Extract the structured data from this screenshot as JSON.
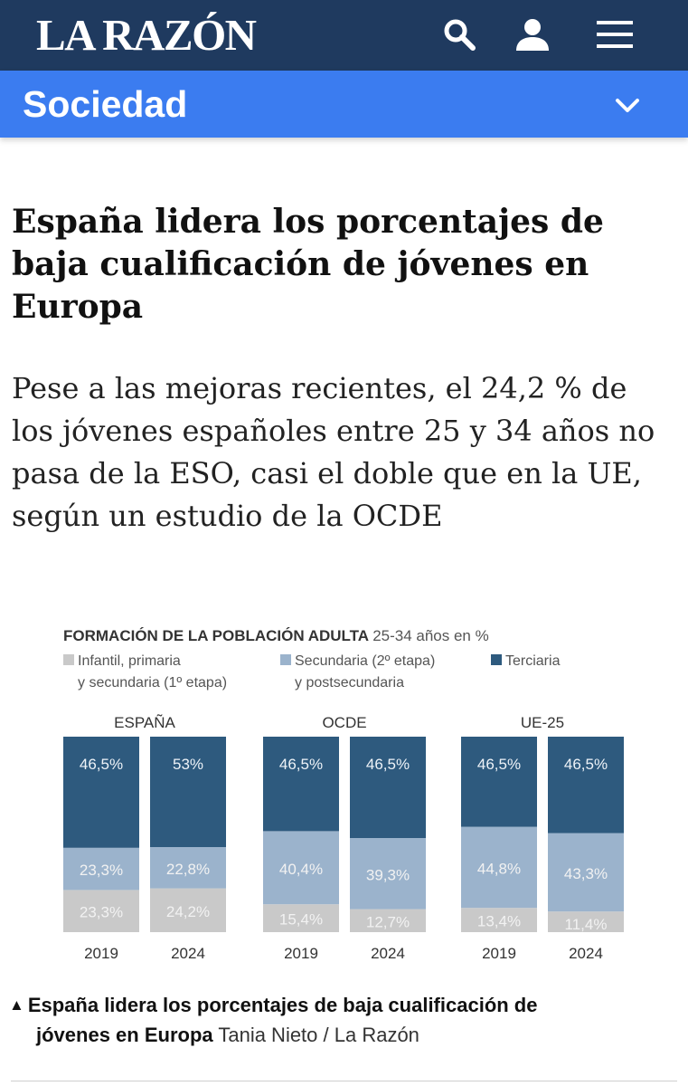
{
  "header": {
    "logo_text": "LA RAZÓN",
    "icons": [
      "search-icon",
      "user-icon",
      "menu-icon"
    ],
    "background": "#1f3a5f"
  },
  "section": {
    "title": "Sociedad",
    "icon": "chevron-down-icon",
    "background": "#3b7cf0"
  },
  "article": {
    "headline": "España lidera los porcentajes de baja cualificación de jóvenes en Europa",
    "subheadline": "Pese a las mejoras recientes, el 24,2 % de los jóvenes españoles entre 25 y 34 años no pasa de la ESO, casi el doble que en la UE, según un estudio de la OCDE"
  },
  "chart_data": {
    "type": "bar",
    "stacked": true,
    "title": "FORMACIÓN DE LA POBLACIÓN ADULTA",
    "subtitle": "25-34 años en %",
    "legend": [
      {
        "line1": "Infantil, primaria",
        "line2": "y secundaria (1º etapa)",
        "color": "#c9c9c9"
      },
      {
        "line1": "Secundaria (2º etapa)",
        "line2": "y postsecundaria",
        "color": "#9bb3cc"
      },
      {
        "line1": "Terciaria",
        "line2": "",
        "color": "#2e5a7e"
      }
    ],
    "groups": [
      {
        "name": "ESPAÑA",
        "bars": [
          {
            "year": "2019",
            "values": [
              23.3,
              23.3,
              46.5
            ],
            "labels": [
              "23,3%",
              "23,3%",
              "46,5%"
            ]
          },
          {
            "year": "2024",
            "values": [
              24.2,
              22.8,
              53
            ],
            "labels": [
              "24,2%",
              "22,8%",
              "53%"
            ]
          }
        ]
      },
      {
        "name": "OCDE",
        "bars": [
          {
            "year": "2019",
            "values": [
              15.4,
              40.4,
              46.5
            ],
            "labels": [
              "15,4%",
              "40,4%",
              "46,5%"
            ]
          },
          {
            "year": "2024",
            "values": [
              12.7,
              39.3,
              46.5
            ],
            "labels": [
              "12,7%",
              "39,3%",
              "46,5%"
            ]
          }
        ]
      },
      {
        "name": "UE-25",
        "bars": [
          {
            "year": "2019",
            "values": [
              13.4,
              44.8,
              46.5
            ],
            "labels": [
              "13,4%",
              "44,8%",
              "46,5%"
            ]
          },
          {
            "year": "2024",
            "values": [
              11.4,
              43.3,
              46.5
            ],
            "labels": [
              "11,4%",
              "43,3%",
              "46,5%"
            ]
          }
        ]
      }
    ],
    "colors": {
      "low": "#c9c9c9",
      "mid": "#9bb3cc",
      "high": "#2e5a7e"
    }
  },
  "caption": {
    "text_bold": "España lidera los porcentajes de baja cualificación de jóvenes en Europa",
    "line1_bold": "España lidera los porcentajes de baja cualificación de",
    "line2_bold": "jóvenes en Europa",
    "credit": "Tania Nieto / La Razón",
    "icon": "triangle-up-icon"
  }
}
